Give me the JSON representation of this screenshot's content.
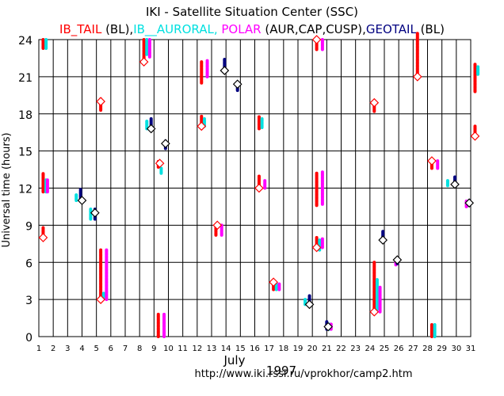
{
  "header": {
    "title": "IKI - Satellite Situation Center (SSC)",
    "legend": [
      {
        "text": "IB_TAIL",
        "color": "#ff0000"
      },
      {
        "text": " (BL),",
        "color": "#000000"
      },
      {
        "text": "IB__AURORAL,",
        "color": "#00e0e0"
      },
      {
        "text": " POLAR",
        "color": "#ff00ff"
      },
      {
        "text": " (AUR,CAP,CUSP),",
        "color": "#000000"
      },
      {
        "text": "GEOTAIL",
        "color": "#000080"
      },
      {
        "text": " (BL)",
        "color": "#000000"
      }
    ]
  },
  "footer": {
    "month": "July",
    "year": "1997",
    "url": "http://www.iki.rssi.ru/vprokhor/camp2.htm"
  },
  "chart_data": {
    "type": "scatter",
    "title": "IKI - Satellite Situation Center (SSC)",
    "xlabel": "July 1997",
    "ylabel": "Universal time (hours)",
    "xlim": [
      1,
      31
    ],
    "ylim": [
      0,
      24
    ],
    "x_ticks": [
      1,
      2,
      3,
      4,
      5,
      6,
      7,
      8,
      9,
      10,
      11,
      12,
      13,
      14,
      15,
      16,
      17,
      18,
      19,
      20,
      21,
      22,
      23,
      24,
      25,
      26,
      27,
      28,
      29,
      30,
      31
    ],
    "y_ticks": [
      0,
      3,
      6,
      9,
      12,
      15,
      18,
      21,
      24
    ],
    "grid": true,
    "colors": {
      "IB_TAIL": "#ff0000",
      "IB_AURORAL": "#00e0e0",
      "POLAR": "#ff00ff",
      "GEOTAIL": "#000080",
      "marker": "#000000"
    },
    "series": [
      {
        "name": "IB_TAIL",
        "color": "#ff0000",
        "segments": [
          {
            "day": 1.3,
            "y": [
              7.9,
              8.8
            ]
          },
          {
            "day": 1.3,
            "y": [
              11.7,
              13.2
            ]
          },
          {
            "day": 1.3,
            "y": [
              23.3,
              24
            ]
          },
          {
            "day": 5.3,
            "y": [
              2.9,
              7.0
            ]
          },
          {
            "day": 5.3,
            "y": [
              18.3,
              19.2
            ]
          },
          {
            "day": 8.3,
            "y": [
              22.2,
              24
            ]
          },
          {
            "day": 9.3,
            "y": [
              13.7,
              14.2
            ]
          },
          {
            "day": 9.3,
            "y": [
              0,
              1.8
            ]
          },
          {
            "day": 12.3,
            "y": [
              20.5,
              22.2
            ]
          },
          {
            "day": 12.3,
            "y": [
              17.0,
              17.8
            ]
          },
          {
            "day": 13.3,
            "y": [
              8.2,
              9.0
            ]
          },
          {
            "day": 16.3,
            "y": [
              16.8,
              17.8
            ]
          },
          {
            "day": 16.3,
            "y": [
              12.0,
              13.0
            ]
          },
          {
            "day": 17.3,
            "y": [
              3.8,
              4.4
            ]
          },
          {
            "day": 20.3,
            "y": [
              10.6,
              13.2
            ]
          },
          {
            "day": 20.3,
            "y": [
              23.2,
              24
            ]
          },
          {
            "day": 20.3,
            "y": [
              7.2,
              8.0
            ]
          },
          {
            "day": 24.3,
            "y": [
              2.0,
              6.0
            ]
          },
          {
            "day": 24.3,
            "y": [
              18.2,
              18.9
            ]
          },
          {
            "day": 27.3,
            "y": [
              21.0,
              24.5
            ]
          },
          {
            "day": 28.3,
            "y": [
              13.6,
              14.2
            ]
          },
          {
            "day": 28.3,
            "y": [
              0,
              1.0
            ]
          },
          {
            "day": 31.3,
            "y": [
              19.8,
              22.0
            ]
          },
          {
            "day": 31.3,
            "y": [
              16.2,
              17.0
            ]
          }
        ]
      },
      {
        "name": "IB_AURORAL",
        "color": "#00e0e0",
        "segments": [
          {
            "day": 1.5,
            "y": [
              11.7,
              12.7
            ]
          },
          {
            "day": 1.5,
            "y": [
              23.3,
              24
            ]
          },
          {
            "day": 3.6,
            "y": [
              11.0,
              11.5
            ]
          },
          {
            "day": 4.6,
            "y": [
              9.5,
              10.3
            ]
          },
          {
            "day": 5.5,
            "y": [
              3.1,
              3.5
            ]
          },
          {
            "day": 8.5,
            "y": [
              16.8,
              17.4
            ]
          },
          {
            "day": 8.5,
            "y": [
              22.8,
              24
            ]
          },
          {
            "day": 9.5,
            "y": [
              13.2,
              13.6
            ]
          },
          {
            "day": 12.5,
            "y": [
              17.0,
              17.6
            ]
          },
          {
            "day": 16.5,
            "y": [
              16.9,
              17.6
            ]
          },
          {
            "day": 17.5,
            "y": [
              3.8,
              4.3
            ]
          },
          {
            "day": 19.5,
            "y": [
              2.6,
              3.0
            ]
          },
          {
            "day": 20.5,
            "y": [
              7.0,
              7.8
            ]
          },
          {
            "day": 21.2,
            "y": [
              0.6,
              1.0
            ]
          },
          {
            "day": 24.5,
            "y": [
              2.2,
              4.6
            ]
          },
          {
            "day": 28.5,
            "y": [
              0,
              1.0
            ]
          },
          {
            "day": 29.4,
            "y": [
              12.2,
              12.6
            ]
          },
          {
            "day": 31.5,
            "y": [
              21.2,
              21.8
            ]
          }
        ]
      },
      {
        "name": "POLAR",
        "color": "#ff00ff",
        "segments": [
          {
            "day": 1.6,
            "y": [
              11.7,
              12.7
            ]
          },
          {
            "day": 5.7,
            "y": [
              3.0,
              7.0
            ]
          },
          {
            "day": 8.7,
            "y": [
              22.6,
              24
            ]
          },
          {
            "day": 9.7,
            "y": [
              0,
              1.8
            ]
          },
          {
            "day": 12.7,
            "y": [
              21.0,
              22.3
            ]
          },
          {
            "day": 13.7,
            "y": [
              8.2,
              9.0
            ]
          },
          {
            "day": 16.7,
            "y": [
              12.0,
              12.6
            ]
          },
          {
            "day": 17.7,
            "y": [
              3.8,
              4.3
            ]
          },
          {
            "day": 20.7,
            "y": [
              10.7,
              13.3
            ]
          },
          {
            "day": 20.7,
            "y": [
              23.2,
              24
            ]
          },
          {
            "day": 20.7,
            "y": [
              7.2,
              7.9
            ]
          },
          {
            "day": 21.3,
            "y": [
              0.6,
              1.0
            ]
          },
          {
            "day": 24.7,
            "y": [
              2.0,
              4.0
            ]
          },
          {
            "day": 25.8,
            "y": [
              5.8,
              6.3
            ]
          },
          {
            "day": 28.7,
            "y": [
              13.6,
              14.2
            ]
          },
          {
            "day": 30.7,
            "y": [
              10.5,
              11.0
            ]
          }
        ]
      },
      {
        "name": "GEOTAIL",
        "color": "#000080",
        "segments": [
          {
            "day": 3.9,
            "y": [
              11.0,
              11.9
            ]
          },
          {
            "day": 4.9,
            "y": [
              9.5,
              10.3
            ]
          },
          {
            "day": 8.8,
            "y": [
              16.8,
              17.6
            ]
          },
          {
            "day": 9.8,
            "y": [
              15.2,
              15.8
            ]
          },
          {
            "day": 13.9,
            "y": [
              21.5,
              22.4
            ]
          },
          {
            "day": 14.8,
            "y": [
              19.9,
              20.4
            ]
          },
          {
            "day": 19.8,
            "y": [
              2.7,
              3.3
            ]
          },
          {
            "day": 21.0,
            "y": [
              0.6,
              1.2
            ]
          },
          {
            "day": 24.9,
            "y": [
              7.8,
              8.5
            ]
          },
          {
            "day": 25.9,
            "y": [
              5.9,
              6.4
            ]
          },
          {
            "day": 29.9,
            "y": [
              12.3,
              12.9
            ]
          },
          {
            "day": 30.9,
            "y": [
              10.6,
              11.0
            ]
          }
        ]
      }
    ],
    "diamonds": [
      {
        "day": 1.3,
        "y": 8.0,
        "color": "#ff0000"
      },
      {
        "day": 4.0,
        "y": 11.0,
        "color": "#000000"
      },
      {
        "day": 4.9,
        "y": 10.0,
        "color": "#000000"
      },
      {
        "day": 5.3,
        "y": 3.0,
        "color": "#ff0000"
      },
      {
        "day": 5.3,
        "y": 19.0,
        "color": "#ff0000"
      },
      {
        "day": 8.3,
        "y": 22.2,
        "color": "#ff0000"
      },
      {
        "day": 8.8,
        "y": 16.8,
        "color": "#000000"
      },
      {
        "day": 9.4,
        "y": 14.0,
        "color": "#ff0000"
      },
      {
        "day": 9.8,
        "y": 15.6,
        "color": "#000000"
      },
      {
        "day": 12.3,
        "y": 17.0,
        "color": "#ff0000"
      },
      {
        "day": 13.4,
        "y": 9.0,
        "color": "#ff0000"
      },
      {
        "day": 13.9,
        "y": 21.5,
        "color": "#000000"
      },
      {
        "day": 14.8,
        "y": 20.4,
        "color": "#000000"
      },
      {
        "day": 16.3,
        "y": 12.0,
        "color": "#ff0000"
      },
      {
        "day": 17.3,
        "y": 4.4,
        "color": "#ff0000"
      },
      {
        "day": 19.8,
        "y": 2.6,
        "color": "#000000"
      },
      {
        "day": 20.3,
        "y": 7.2,
        "color": "#ff0000"
      },
      {
        "day": 20.3,
        "y": 24.0,
        "color": "#ff0000"
      },
      {
        "day": 21.1,
        "y": 0.8,
        "color": "#000000"
      },
      {
        "day": 24.3,
        "y": 2.0,
        "color": "#ff0000"
      },
      {
        "day": 24.3,
        "y": 18.9,
        "color": "#ff0000"
      },
      {
        "day": 24.9,
        "y": 7.8,
        "color": "#000000"
      },
      {
        "day": 25.9,
        "y": 6.2,
        "color": "#000000"
      },
      {
        "day": 27.3,
        "y": 21.0,
        "color": "#ff0000"
      },
      {
        "day": 28.3,
        "y": 14.2,
        "color": "#ff0000"
      },
      {
        "day": 29.9,
        "y": 12.3,
        "color": "#000000"
      },
      {
        "day": 30.9,
        "y": 10.8,
        "color": "#000000"
      },
      {
        "day": 31.3,
        "y": 16.2,
        "color": "#ff0000"
      }
    ]
  }
}
